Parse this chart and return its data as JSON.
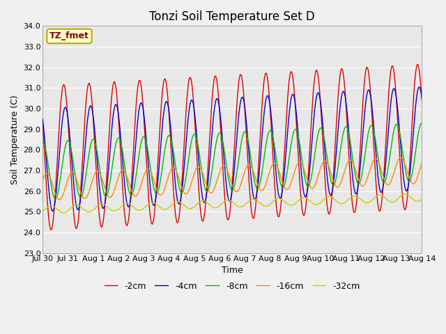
{
  "title": "Tonzi Soil Temperature Set D",
  "xlabel": "Time",
  "ylabel": "Soil Temperature (C)",
  "annotation_text": "TZ_fmet",
  "annotation_bg": "#ffffcc",
  "annotation_border": "#bbaa00",
  "ylim": [
    23.0,
    34.0
  ],
  "yticks": [
    23.0,
    24.0,
    25.0,
    26.0,
    27.0,
    28.0,
    29.0,
    30.0,
    31.0,
    32.0,
    33.0,
    34.0
  ],
  "series": [
    {
      "label": "-2cm",
      "color": "#dd0000",
      "mean": 27.6,
      "amplitude": 3.5,
      "phase_hours": 14.0,
      "trend": 0.07
    },
    {
      "label": "-4cm",
      "color": "#0000cc",
      "mean": 27.5,
      "amplitude": 2.5,
      "phase_hours": 15.5,
      "trend": 0.07
    },
    {
      "label": "-8cm",
      "color": "#00bb00",
      "mean": 27.0,
      "amplitude": 1.4,
      "phase_hours": 18.0,
      "trend": 0.06
    },
    {
      "label": "-16cm",
      "color": "#ff8800",
      "mean": 26.2,
      "amplitude": 0.65,
      "phase_hours": 22.0,
      "trend": 0.055
    },
    {
      "label": "-32cm",
      "color": "#cccc00",
      "mean": 25.1,
      "amplitude": 0.18,
      "phase_hours": 26.0,
      "trend": 0.04
    }
  ],
  "xtick_labels": [
    "Jul 30",
    "Jul 31",
    "Aug 1",
    "Aug 2",
    "Aug 3",
    "Aug 4",
    "Aug 5",
    "Aug 6",
    "Aug 7",
    "Aug 8",
    "Aug 9",
    "Aug 10",
    "Aug 11",
    "Aug 12",
    "Aug 13",
    "Aug 14"
  ],
  "n_days": 15,
  "pts_per_day": 96,
  "fig_width": 6.4,
  "fig_height": 4.8,
  "dpi": 100,
  "plot_bg": "#e8e8e8",
  "fig_bg": "#f0f0f0",
  "grid_color": "#ffffff",
  "title_fontsize": 12,
  "label_fontsize": 9,
  "tick_fontsize": 8,
  "legend_fontsize": 9,
  "line_width": 1.0
}
